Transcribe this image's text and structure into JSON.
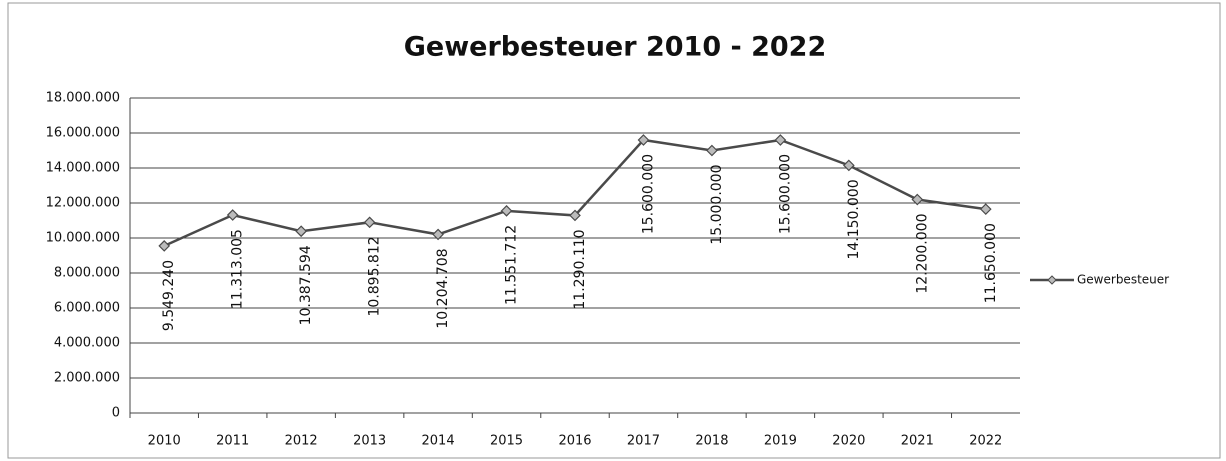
{
  "chart_data": {
    "type": "line",
    "title": "Gewerbesteuer 2010 - 2022",
    "categories": [
      "2010",
      "2011",
      "2012",
      "2013",
      "2014",
      "2015",
      "2016",
      "2017",
      "2018",
      "2019",
      "2020",
      "2021",
      "2022"
    ],
    "series": [
      {
        "name": "Gewerbesteuer",
        "color": "#4a4a4a",
        "values": [
          9549240,
          11313005,
          10387594,
          10895812,
          10204708,
          11551712,
          11290110,
          15600000,
          15000000,
          15600000,
          14150000,
          12200000,
          11650000
        ],
        "value_labels": [
          "9.549.240",
          "11.313.005",
          "10.387.594",
          "10.895.812",
          "10.204.708",
          "11.551.712",
          "11.290.110",
          "15.600.000",
          "15.000.000",
          "15.600.000",
          "14.150.000",
          "12.200.000",
          "11.650.000"
        ]
      }
    ],
    "ylim": [
      0,
      18000000
    ],
    "yticks": [
      0,
      {
        "value": 2000000,
        "label": "2.000.000"
      },
      {
        "value": 4000000,
        "label": "4.000.000"
      },
      {
        "value": 6000000,
        "label": "6.000.000"
      },
      {
        "value": 8000000,
        "label": "8.000.000"
      },
      {
        "value": 10000000,
        "label": "10.000.000"
      },
      {
        "value": 12000000,
        "label": "12.000.000"
      },
      {
        "value": 14000000,
        "label": "14.000.000"
      },
      {
        "value": 16000000,
        "label": "16.000.000"
      },
      {
        "value": 18000000,
        "label": "18.000.000"
      }
    ],
    "grid": true,
    "legend": "right"
  }
}
